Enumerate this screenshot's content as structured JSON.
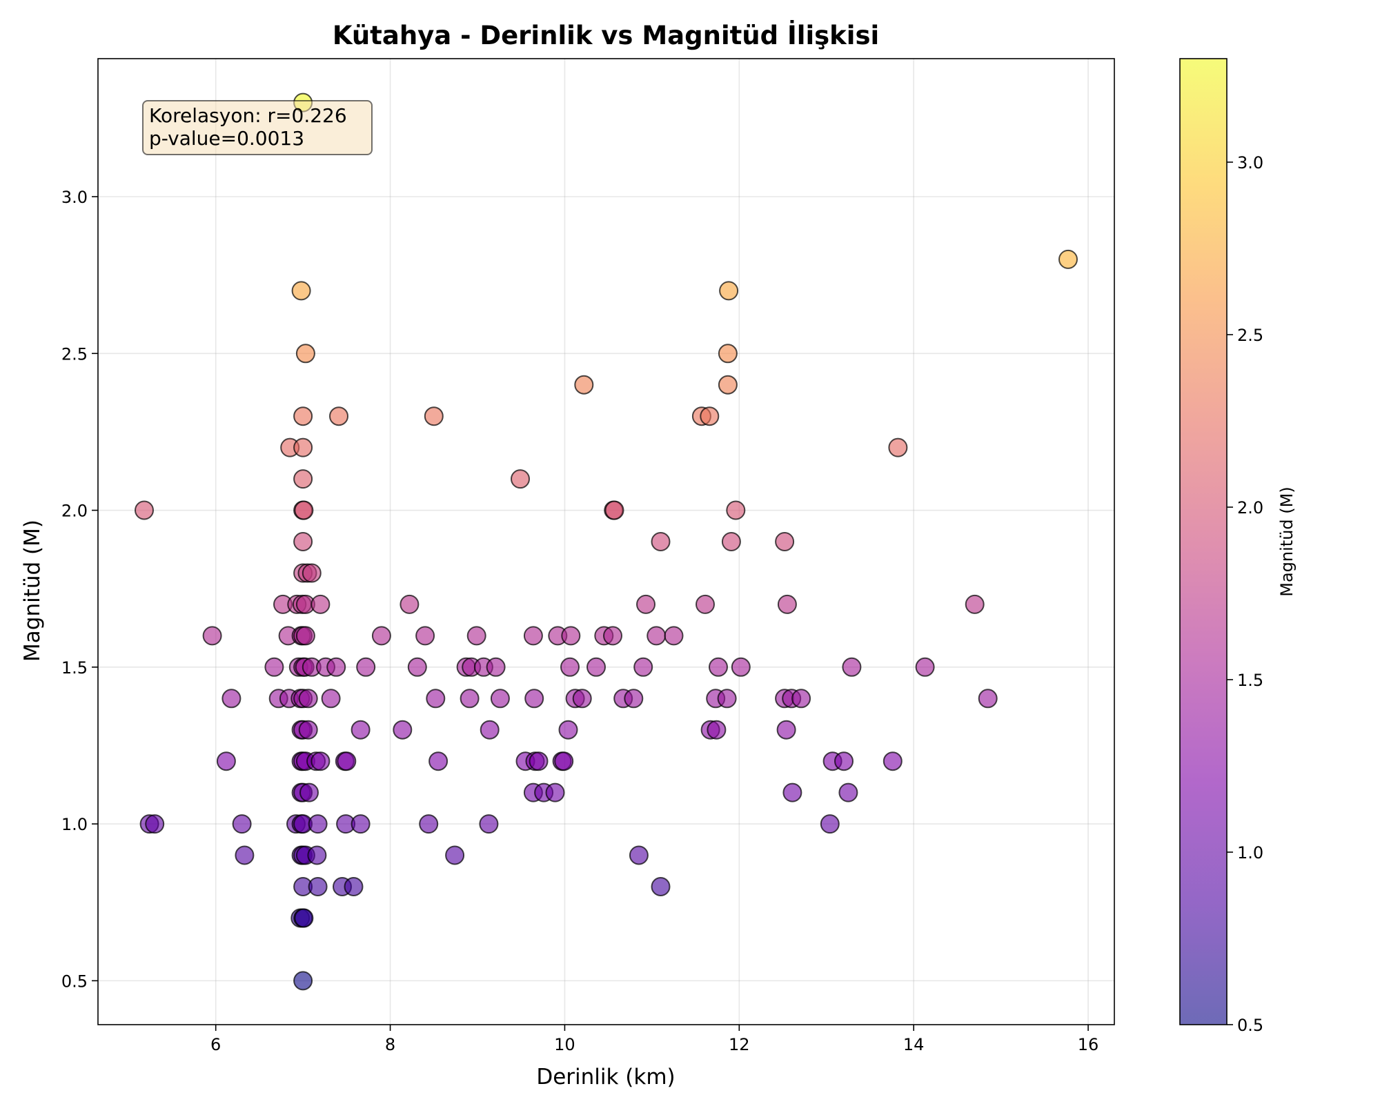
{
  "chart_data": {
    "type": "scatter",
    "title": "Kütahya - Derinlik vs Magnitüd İlişkisi",
    "xlabel": "Derinlik (km)",
    "ylabel": "Magnitüd (M)",
    "xlim": [
      4.65,
      16.3
    ],
    "ylim": [
      0.36,
      3.44
    ],
    "xticks": [
      6,
      8,
      10,
      12,
      14,
      16
    ],
    "yticks": [
      0.5,
      1.0,
      1.5,
      2.0,
      2.5,
      3.0
    ],
    "grid": true,
    "colormap": "plasma",
    "point_alpha": 0.6,
    "colorbar": {
      "label": "Magnitüd (M)",
      "range": [
        0.5,
        3.3
      ],
      "ticks": [
        0.5,
        1.0,
        1.5,
        2.0,
        2.5,
        3.0
      ]
    },
    "annotation": {
      "line1": "Korelasyon: r=0.226",
      "line2": "p-value=0.0013",
      "placement": "top-left"
    },
    "points": [
      [
        7.0,
        3.3
      ],
      [
        15.77,
        2.8
      ],
      [
        6.98,
        2.7
      ],
      [
        11.88,
        2.7
      ],
      [
        7.03,
        2.5
      ],
      [
        11.87,
        2.5
      ],
      [
        10.22,
        2.4
      ],
      [
        11.87,
        2.4
      ],
      [
        7.0,
        2.3
      ],
      [
        7.41,
        2.3
      ],
      [
        8.5,
        2.3
      ],
      [
        11.57,
        2.3
      ],
      [
        11.66,
        2.3
      ],
      [
        6.85,
        2.2
      ],
      [
        7.0,
        2.2
      ],
      [
        13.82,
        2.2
      ],
      [
        7.0,
        2.1
      ],
      [
        9.49,
        2.1
      ],
      [
        5.18,
        2.0
      ],
      [
        7.0,
        2.0
      ],
      [
        7.01,
        2.0
      ],
      [
        10.56,
        2.0
      ],
      [
        10.57,
        2.0
      ],
      [
        11.96,
        2.0
      ],
      [
        7.0,
        1.9
      ],
      [
        11.1,
        1.9
      ],
      [
        11.91,
        1.9
      ],
      [
        12.52,
        1.9
      ],
      [
        7.0,
        1.8
      ],
      [
        7.05,
        1.8
      ],
      [
        7.1,
        1.8
      ],
      [
        6.77,
        1.7
      ],
      [
        6.93,
        1.7
      ],
      [
        6.99,
        1.7
      ],
      [
        7.03,
        1.7
      ],
      [
        7.2,
        1.7
      ],
      [
        8.22,
        1.7
      ],
      [
        10.93,
        1.7
      ],
      [
        11.61,
        1.7
      ],
      [
        12.55,
        1.7
      ],
      [
        14.7,
        1.7
      ],
      [
        5.96,
        1.6
      ],
      [
        6.83,
        1.6
      ],
      [
        6.98,
        1.6
      ],
      [
        7.0,
        1.6
      ],
      [
        7.03,
        1.6
      ],
      [
        7.9,
        1.6
      ],
      [
        8.4,
        1.6
      ],
      [
        8.99,
        1.6
      ],
      [
        9.64,
        1.6
      ],
      [
        9.92,
        1.6
      ],
      [
        10.07,
        1.6
      ],
      [
        10.45,
        1.6
      ],
      [
        10.55,
        1.6
      ],
      [
        11.05,
        1.6
      ],
      [
        11.25,
        1.6
      ],
      [
        6.67,
        1.5
      ],
      [
        6.95,
        1.5
      ],
      [
        7.0,
        1.5
      ],
      [
        7.02,
        1.5
      ],
      [
        7.1,
        1.5
      ],
      [
        7.26,
        1.5
      ],
      [
        7.38,
        1.5
      ],
      [
        7.72,
        1.5
      ],
      [
        8.31,
        1.5
      ],
      [
        8.87,
        1.5
      ],
      [
        8.93,
        1.5
      ],
      [
        9.07,
        1.5
      ],
      [
        9.21,
        1.5
      ],
      [
        10.06,
        1.5
      ],
      [
        10.36,
        1.5
      ],
      [
        10.9,
        1.5
      ],
      [
        11.76,
        1.5
      ],
      [
        12.02,
        1.5
      ],
      [
        13.29,
        1.5
      ],
      [
        14.13,
        1.5
      ],
      [
        6.18,
        1.4
      ],
      [
        6.72,
        1.4
      ],
      [
        6.84,
        1.4
      ],
      [
        6.97,
        1.4
      ],
      [
        7.0,
        1.4
      ],
      [
        7.06,
        1.4
      ],
      [
        7.32,
        1.4
      ],
      [
        8.52,
        1.4
      ],
      [
        8.91,
        1.4
      ],
      [
        9.26,
        1.4
      ],
      [
        9.65,
        1.4
      ],
      [
        10.12,
        1.4
      ],
      [
        10.2,
        1.4
      ],
      [
        10.67,
        1.4
      ],
      [
        10.79,
        1.4
      ],
      [
        11.73,
        1.4
      ],
      [
        11.86,
        1.4
      ],
      [
        12.52,
        1.4
      ],
      [
        12.6,
        1.4
      ],
      [
        12.71,
        1.4
      ],
      [
        14.85,
        1.4
      ],
      [
        6.98,
        1.3
      ],
      [
        7.0,
        1.3
      ],
      [
        7.06,
        1.3
      ],
      [
        7.66,
        1.3
      ],
      [
        8.14,
        1.3
      ],
      [
        9.14,
        1.3
      ],
      [
        10.04,
        1.3
      ],
      [
        11.67,
        1.3
      ],
      [
        11.74,
        1.3
      ],
      [
        12.54,
        1.3
      ],
      [
        6.12,
        1.2
      ],
      [
        6.98,
        1.2
      ],
      [
        7.0,
        1.2
      ],
      [
        7.03,
        1.2
      ],
      [
        7.15,
        1.2
      ],
      [
        7.2,
        1.2
      ],
      [
        7.48,
        1.2
      ],
      [
        7.5,
        1.2
      ],
      [
        8.55,
        1.2
      ],
      [
        9.55,
        1.2
      ],
      [
        9.66,
        1.2
      ],
      [
        9.7,
        1.2
      ],
      [
        9.97,
        1.2
      ],
      [
        9.99,
        1.2
      ],
      [
        13.07,
        1.2
      ],
      [
        13.2,
        1.2
      ],
      [
        13.76,
        1.2
      ],
      [
        6.98,
        1.1
      ],
      [
        7.0,
        1.1
      ],
      [
        7.07,
        1.1
      ],
      [
        9.64,
        1.1
      ],
      [
        9.76,
        1.1
      ],
      [
        9.89,
        1.1
      ],
      [
        12.61,
        1.1
      ],
      [
        13.25,
        1.1
      ],
      [
        5.24,
        1.0
      ],
      [
        5.3,
        1.0
      ],
      [
        6.3,
        1.0
      ],
      [
        6.92,
        1.0
      ],
      [
        6.98,
        1.0
      ],
      [
        7.0,
        1.0
      ],
      [
        7.17,
        1.0
      ],
      [
        7.49,
        1.0
      ],
      [
        7.66,
        1.0
      ],
      [
        8.44,
        1.0
      ],
      [
        9.13,
        1.0
      ],
      [
        13.04,
        1.0
      ],
      [
        6.33,
        0.9
      ],
      [
        6.98,
        0.9
      ],
      [
        7.0,
        0.9
      ],
      [
        7.03,
        0.9
      ],
      [
        7.16,
        0.9
      ],
      [
        8.74,
        0.9
      ],
      [
        10.85,
        0.9
      ],
      [
        7.0,
        0.8
      ],
      [
        7.17,
        0.8
      ],
      [
        7.45,
        0.8
      ],
      [
        7.58,
        0.8
      ],
      [
        11.1,
        0.8
      ],
      [
        6.97,
        0.7
      ],
      [
        7.0,
        0.7
      ],
      [
        7.01,
        0.7
      ],
      [
        7.0,
        0.5
      ]
    ]
  }
}
